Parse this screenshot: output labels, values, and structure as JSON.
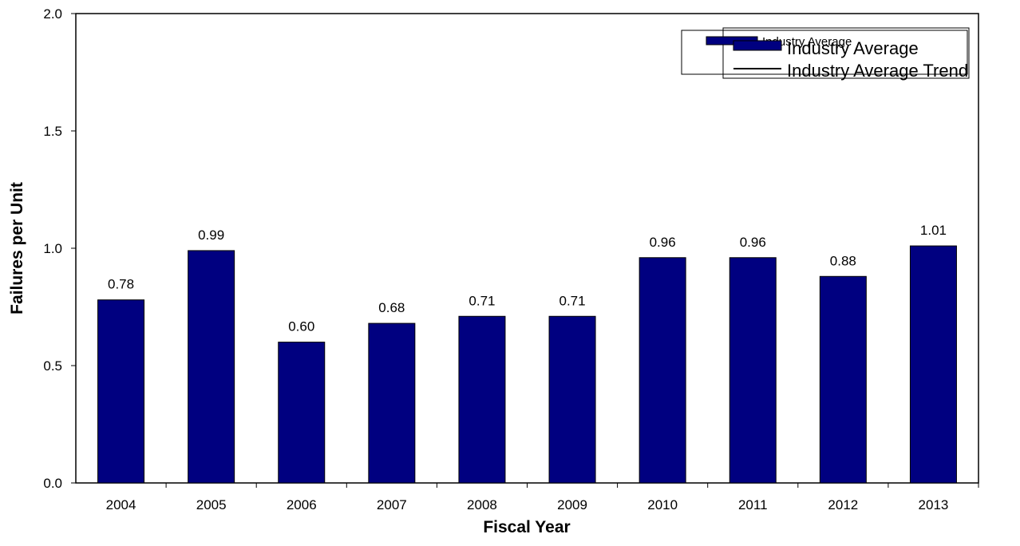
{
  "chart_data": {
    "type": "bar",
    "categories": [
      "2004",
      "2005",
      "2006",
      "2007",
      "2008",
      "2009",
      "2010",
      "2011",
      "2012",
      "2013"
    ],
    "series": [
      {
        "name": "Industry Average",
        "values": [
          0.78,
          0.99,
          0.6,
          0.68,
          0.71,
          0.71,
          0.96,
          0.96,
          0.88,
          1.01
        ],
        "data_labels": [
          "0.78",
          "0.99",
          "0.60",
          "0.68",
          "0.71",
          "0.71",
          "0.96",
          "0.96",
          "0.88",
          "1.01"
        ]
      }
    ],
    "xlabel": "Fiscal Year",
    "ylabel": "Failures per Unit",
    "ylim": [
      0,
      2.0
    ],
    "yticks": [
      "0.0",
      "0.5",
      "1.0",
      "1.5",
      "2.0"
    ],
    "grid": false,
    "legend": {
      "placement": "top-right",
      "entries": [
        "Industry Average",
        "Industry Average",
        "Industry Average Trend"
      ]
    },
    "colors": {
      "bar_fill": "#000080",
      "bar_stroke": "#000000",
      "axis": "#000000",
      "background": "#ffffff"
    }
  }
}
